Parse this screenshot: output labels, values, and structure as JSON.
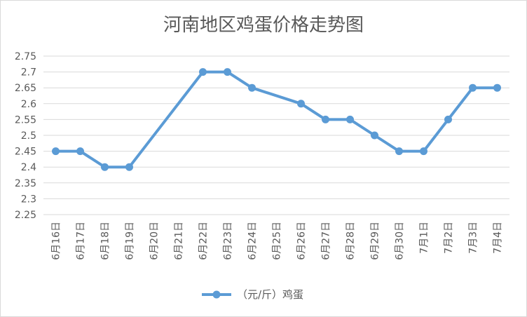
{
  "chart_data": {
    "type": "line",
    "title": "河南地区鸡蛋价格走势图",
    "xlabel": "",
    "ylabel": "",
    "ylim": [
      2.25,
      2.75
    ],
    "yticks": [
      "2.25",
      "2.3",
      "2.35",
      "2.4",
      "2.45",
      "2.5",
      "2.55",
      "2.6",
      "2.65",
      "2.7",
      "2.75"
    ],
    "categories": [
      "6月16日",
      "6月17日",
      "6月18日",
      "6月19日",
      "6月20日",
      "6月21日",
      "6月22日",
      "6月23日",
      "6月24日",
      "6月25日",
      "6月26日",
      "6月27日",
      "6月28日",
      "6月29日",
      "6月30日",
      "7月1日",
      "7月2日",
      "7月3日",
      "7月4日"
    ],
    "series": [
      {
        "name": "（元/斤）鸡蛋",
        "values": [
          2.45,
          2.45,
          2.4,
          2.4,
          null,
          null,
          2.7,
          2.7,
          2.65,
          null,
          2.6,
          2.55,
          2.55,
          2.5,
          2.45,
          2.45,
          2.55,
          2.65,
          2.65
        ]
      }
    ],
    "grid": true,
    "legend": "bottom",
    "colors": {
      "series": "#5b9bd5",
      "grid": "#d9d9d9",
      "text": "#595959"
    }
  }
}
